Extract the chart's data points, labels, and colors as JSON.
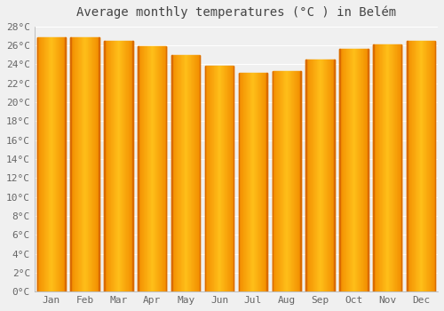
{
  "title": "Average monthly temperatures (°C ) in Belém",
  "months": [
    "Jan",
    "Feb",
    "Mar",
    "Apr",
    "May",
    "Jun",
    "Jul",
    "Aug",
    "Sep",
    "Oct",
    "Nov",
    "Dec"
  ],
  "values": [
    26.8,
    26.8,
    26.5,
    25.9,
    25.0,
    23.8,
    23.1,
    23.3,
    24.5,
    25.6,
    26.1,
    26.5
  ],
  "bar_color_center": "#FFB300",
  "bar_color_edge": "#E65100",
  "ylim": [
    0,
    28
  ],
  "ytick_step": 2,
  "background_color": "#f0f0f0",
  "grid_color": "#ffffff",
  "title_fontsize": 10,
  "tick_fontsize": 8,
  "figsize": [
    5.0,
    3.5
  ],
  "dpi": 100,
  "bar_width": 0.85
}
